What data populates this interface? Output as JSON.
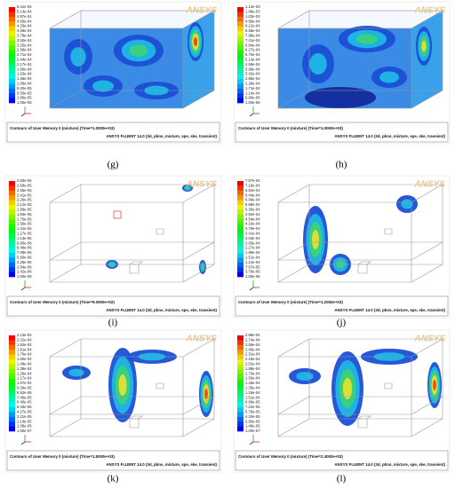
{
  "panels": [
    {
      "label": "(g)",
      "logo": "ANSYS",
      "caption": "Contours of User Memory 0 (mixture)  (Time=1.0000e+03)",
      "footer": "ANSYS FLUENT 14.0 (3d, pbns, mixture, spe, ske, transient)",
      "legend": [
        "5.41e-04",
        "5.14e-04",
        "4.87e-04",
        "4.60e-04",
        "4.33e-04",
        "4.06e-04",
        "3.79e-04",
        "3.52e-04",
        "3.25e-04",
        "2.98e-04",
        "2.71e-04",
        "2.44e-04",
        "2.17e-04",
        "1.90e-04",
        "1.63e-04",
        "1.36e-04",
        "1.09e-04",
        "8.20e-05",
        "5.50e-05",
        "2.80e-05",
        "1.00e-06"
      ]
    },
    {
      "label": "(h)",
      "logo": "ANSYS",
      "caption": "Contours of User Memory 0 (mixture)  (Time=1.0000e+03)",
      "footer": "ANSYS FLUENT 14.0 (3d, pbns, mixture, spe, ske, transient)",
      "legend": [
        "1.14e-03",
        "1.08e-03",
        "1.03e-03",
        "9.69e-04",
        "9.12e-04",
        "8.55e-04",
        "7.98e-04",
        "7.41e-04",
        "6.84e-04",
        "6.27e-04",
        "5.70e-04",
        "5.13e-04",
        "4.56e-04",
        "3.99e-04",
        "3.42e-04",
        "2.85e-04",
        "2.28e-04",
        "1.71e-04",
        "1.14e-04",
        "5.80e-05",
        "1.00e-06"
      ]
    },
    {
      "label": "(i)",
      "logo": "ANSYS",
      "caption": "Contours of User Memory 0 (mixture)  (Time=9.0000e+02)",
      "footer": "ANSYS FLUENT 14.0 (3d, pbns, mixture, spe, ske, transient)",
      "legend": [
        "2.83e-05",
        "2.69e-05",
        "2.55e-05",
        "2.41e-05",
        "2.26e-05",
        "2.12e-05",
        "1.98e-05",
        "1.84e-05",
        "1.70e-05",
        "1.56e-05",
        "1.41e-05",
        "1.27e-05",
        "1.13e-05",
        "9.90e-06",
        "8.49e-06",
        "7.08e-06",
        "5.66e-06",
        "4.25e-06",
        "2.84e-06",
        "1.42e-06",
        "1.00e-08"
      ]
    },
    {
      "label": "(j)",
      "logo": "ANSYS",
      "caption": "Contours of User Memory 0 (mixture)  (Time=1.2000e+03)",
      "footer": "ANSYS FLUENT 14.0 (3d, pbns, mixture, spe, ske, transient)",
      "legend": [
        "7.57e-04",
        "7.19e-04",
        "6.81e-04",
        "6.44e-04",
        "6.06e-04",
        "5.68e-04",
        "5.30e-04",
        "4.92e-04",
        "4.54e-04",
        "4.16e-04",
        "3.79e-04",
        "3.41e-04",
        "3.03e-04",
        "2.65e-04",
        "2.27e-04",
        "1.89e-04",
        "1.51e-04",
        "1.14e-04",
        "7.57e-05",
        "3.79e-05",
        "1.00e-06"
      ]
    },
    {
      "label": "(k)",
      "logo": "ANSYS",
      "caption": "Contours of User Memory 0 (mixture)  (Time=1.5000e+03)",
      "footer": "ANSYS FLUENT 14.0 (3d, pbns, mixture, spe, ske, transient)",
      "legend": [
        "2.13e-04",
        "2.02e-04",
        "1.92e-04",
        "1.81e-04",
        "1.70e-04",
        "1.60e-04",
        "1.49e-04",
        "1.38e-04",
        "1.28e-04",
        "1.17e-04",
        "1.07e-04",
        "9.59e-05",
        "8.52e-05",
        "7.46e-05",
        "6.40e-05",
        "5.33e-05",
        "4.27e-05",
        "3.21e-05",
        "2.14e-05",
        "1.08e-05",
        "1.00e-07"
      ]
    },
    {
      "label": "(l)",
      "logo": "ANSYS",
      "caption": "Contours of User Memory 0 (mixture)  (Time=2.4000e+03)",
      "footer": "ANSYS FLUENT 14.0 (3d, pbns, mixture, spe, ske, transient)",
      "legend": [
        "2.88e-04",
        "2.74e-04",
        "2.59e-04",
        "2.45e-04",
        "2.31e-04",
        "2.16e-04",
        "2.02e-04",
        "1.88e-04",
        "1.73e-04",
        "1.59e-04",
        "1.45e-04",
        "1.30e-04",
        "1.16e-04",
        "1.01e-04",
        "8.66e-05",
        "7.22e-05",
        "5.78e-05",
        "4.34e-05",
        "2.90e-05",
        "1.46e-05",
        "1.00e-07"
      ]
    }
  ]
}
